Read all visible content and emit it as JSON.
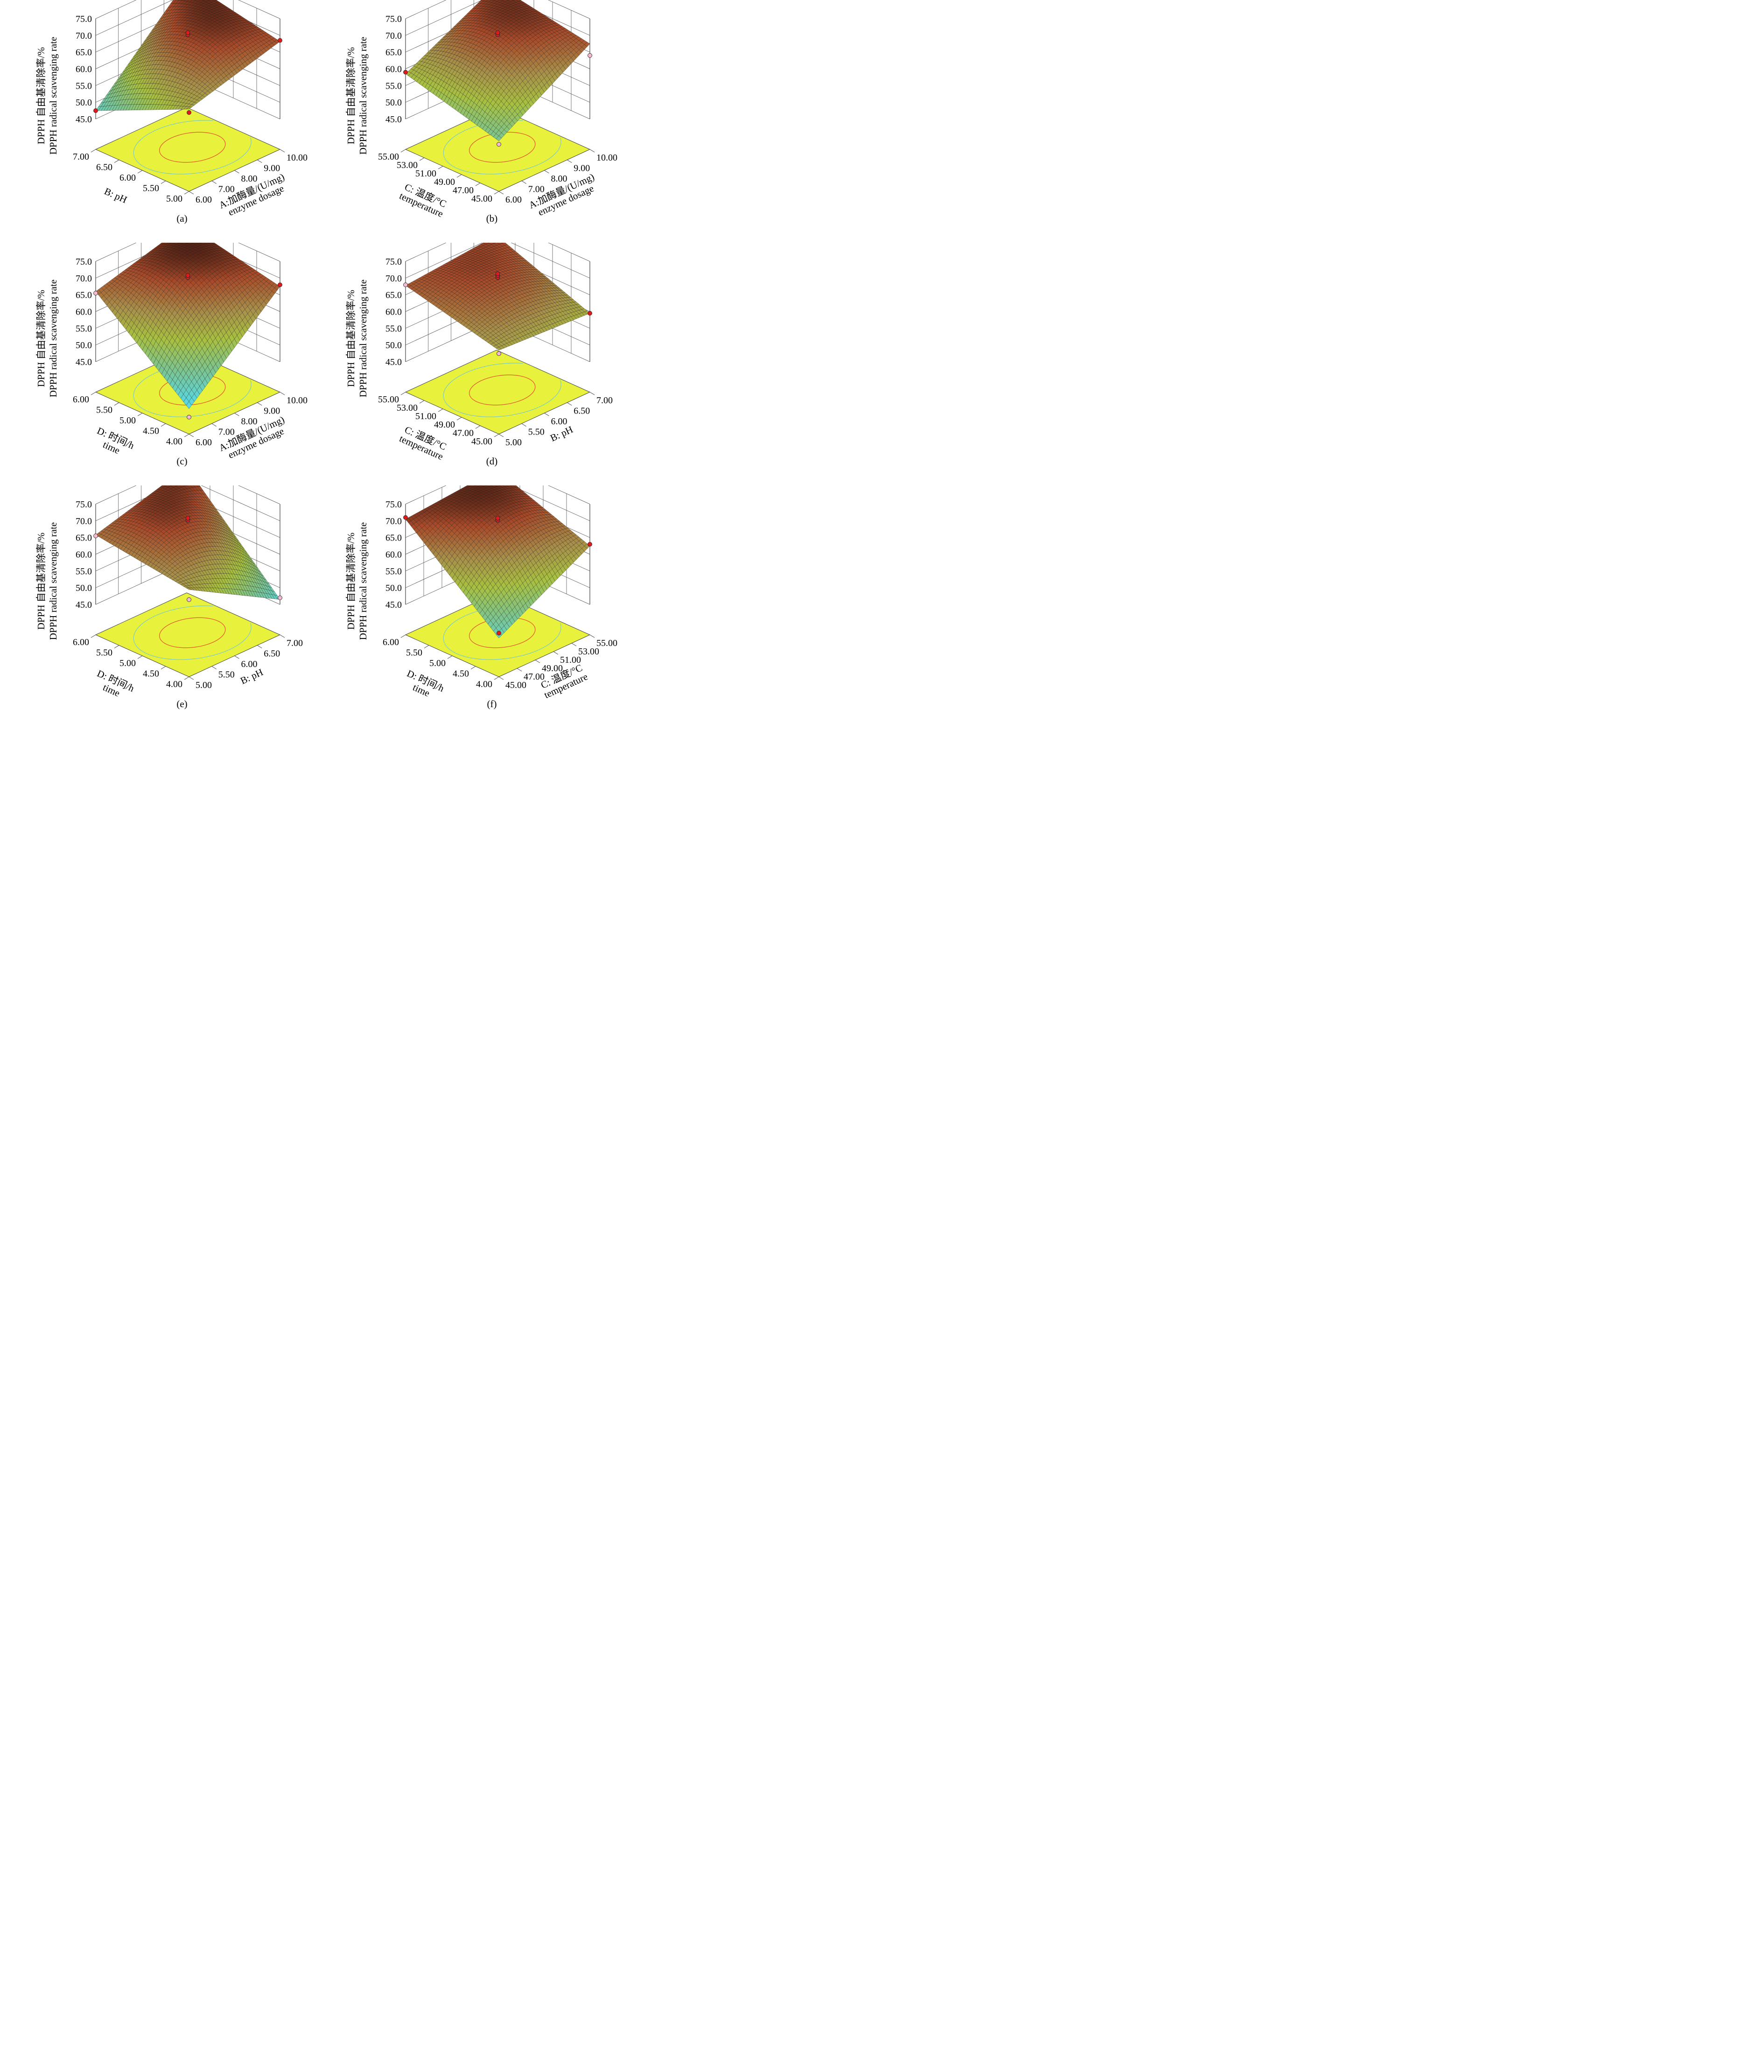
{
  "colors": {
    "floor": "#e8f23c",
    "contour_hi": "#e0502a",
    "contour_lo": "#7ac8c8",
    "point_above": "#e11919",
    "point_below": "#f4b8d0",
    "box": "#404040"
  },
  "chart_data": [
    {
      "id": "a",
      "type": "surface3d",
      "caption": "(a)",
      "zlabel": [
        "DPPH 自由基清除率/%",
        "DPPH radical scavenging rate"
      ],
      "zticks": [
        "45.0",
        "50.0",
        "55.0",
        "60.0",
        "65.0",
        "70.0",
        "75.0"
      ],
      "zlim": [
        45,
        75
      ],
      "right_axis": {
        "label": [
          "A:加酶量/(U/mg)",
          "enzyme dosage"
        ],
        "ticks": [
          "6.00",
          "7.00",
          "8.00",
          "9.00",
          "10.00"
        ],
        "range": [
          6,
          10
        ]
      },
      "left_axis": {
        "label": [
          "B: pH"
        ],
        "ticks": [
          "5.00",
          "5.50",
          "6.00",
          "6.50",
          "7.00"
        ],
        "range": [
          5,
          7
        ]
      },
      "corners": {
        "front": 60.5,
        "right": 68.2,
        "back": 73.8,
        "left": 47.5,
        "peak": 74.2
      },
      "points": [
        {
          "u": 0,
          "v": 0,
          "z": 59.5,
          "above": true
        },
        {
          "u": 0.5,
          "v": 0.5,
          "z": 70.2,
          "above": true
        },
        {
          "u": 0.5,
          "v": 0.5,
          "z": 70.8,
          "above": true
        },
        {
          "u": 1,
          "v": 0,
          "z": 68.5,
          "above": true
        },
        {
          "u": 0,
          "v": 1,
          "z": 47.5,
          "above": true
        },
        {
          "u": 1,
          "v": 1,
          "z": 73.5,
          "above": true
        }
      ]
    },
    {
      "id": "b",
      "type": "surface3d",
      "caption": "(b)",
      "zlabel": [
        "DPPH 自由基清除率/%",
        "DPPH radical scavenging rate"
      ],
      "zticks": [
        "45.0",
        "50.0",
        "55.0",
        "60.0",
        "65.0",
        "70.0",
        "75.0"
      ],
      "zlim": [
        45,
        75
      ],
      "right_axis": {
        "label": [
          "A:加酶量/(U/mg)",
          "enzyme dosage"
        ],
        "ticks": [
          "6.00",
          "7.00",
          "8.00",
          "9.00",
          "10.00"
        ],
        "range": [
          6,
          10
        ]
      },
      "left_axis": {
        "label": [
          "C: 温度/°C",
          "temperature"
        ],
        "ticks": [
          "45.00",
          "47.00",
          "49.00",
          "51.00",
          "53.00",
          "55.00"
        ],
        "range": [
          45,
          55
        ]
      },
      "corners": {
        "front": 51.0,
        "right": 67.5,
        "back": 72.5,
        "left": 58.5,
        "peak": 73.0
      },
      "points": [
        {
          "u": 0,
          "v": 0,
          "z": 50.0,
          "above": false
        },
        {
          "u": 0.5,
          "v": 0.5,
          "z": 70.2,
          "above": true
        },
        {
          "u": 0.5,
          "v": 0.5,
          "z": 70.8,
          "above": true
        },
        {
          "u": 1,
          "v": 0,
          "z": 64.0,
          "above": false
        },
        {
          "u": 0,
          "v": 1,
          "z": 59.0,
          "above": true
        }
      ]
    },
    {
      "id": "c",
      "type": "surface3d",
      "caption": "(c)",
      "zlabel": [
        "DPPH 自由基清除率/%",
        "DPPH radical scavenging rate"
      ],
      "zticks": [
        "45.0",
        "50.0",
        "55.0",
        "60.0",
        "65.0",
        "70.0",
        "75.0"
      ],
      "zlim": [
        45,
        75
      ],
      "right_axis": {
        "label": [
          "A:加酶量/(U/mg)",
          "enzyme dosage"
        ],
        "ticks": [
          "6.00",
          "7.00",
          "8.00",
          "9.00",
          "10.00"
        ],
        "range": [
          6,
          10
        ]
      },
      "left_axis": {
        "label": [
          "D: 时间/h",
          "time"
        ],
        "ticks": [
          "4.00",
          "4.50",
          "5.00",
          "5.50",
          "6.00"
        ],
        "range": [
          4,
          6
        ]
      },
      "corners": {
        "front": 43.5,
        "right": 67.5,
        "back": 73.5,
        "left": 66.0,
        "peak": 74.0
      },
      "points": [
        {
          "u": 0,
          "v": 0,
          "z": 41.0,
          "above": false
        },
        {
          "u": 0.5,
          "v": 0.5,
          "z": 70.2,
          "above": true
        },
        {
          "u": 0.5,
          "v": 0.5,
          "z": 70.8,
          "above": true
        },
        {
          "u": 1,
          "v": 0,
          "z": 68.0,
          "above": true
        },
        {
          "u": 0,
          "v": 1,
          "z": 65.5,
          "above": false
        },
        {
          "u": 1,
          "v": 1,
          "z": 75.5,
          "above": true
        }
      ]
    },
    {
      "id": "d",
      "type": "surface3d",
      "caption": "(d)",
      "zlabel": [
        "DPPH 自由基清除率/%",
        "DPPH radical scavenging rate"
      ],
      "zticks": [
        "45.0",
        "50.0",
        "55.0",
        "60.0",
        "65.0",
        "70.0",
        "75.0"
      ],
      "zlim": [
        45,
        75
      ],
      "right_axis": {
        "label": [
          "B: pH"
        ],
        "ticks": [
          "5.00",
          "5.50",
          "6.00",
          "6.50",
          "7.00"
        ],
        "range": [
          5,
          7
        ]
      },
      "left_axis": {
        "label": [
          "C: 温度/°C",
          "temperature"
        ],
        "ticks": [
          "45.00",
          "47.00",
          "49.00",
          "51.00",
          "53.00",
          "55.00"
        ],
        "range": [
          45,
          55
        ]
      },
      "corners": {
        "front": 61.0,
        "right": 59.5,
        "back": 70.2,
        "left": 67.8,
        "peak": 71.0
      },
      "points": [
        {
          "u": 0,
          "v": 0,
          "z": 60.0,
          "above": false
        },
        {
          "u": 0.5,
          "v": 0.5,
          "z": 70.2,
          "above": true
        },
        {
          "u": 0.5,
          "v": 0.5,
          "z": 70.8,
          "above": true
        },
        {
          "u": 0.5,
          "v": 0.5,
          "z": 71.3,
          "above": true
        },
        {
          "u": 1,
          "v": 0,
          "z": 59.5,
          "above": true
        },
        {
          "u": 0,
          "v": 1,
          "z": 68.0,
          "above": false
        }
      ]
    },
    {
      "id": "e",
      "type": "surface3d",
      "caption": "(e)",
      "zlabel": [
        "DPPH 自由基清除率/%",
        "DPPH radical scavenging rate"
      ],
      "zticks": [
        "45.0",
        "50.0",
        "55.0",
        "60.0",
        "65.0",
        "70.0",
        "75.0"
      ],
      "zlim": [
        45,
        75
      ],
      "right_axis": {
        "label": [
          "B: pH"
        ],
        "ticks": [
          "5.00",
          "5.50",
          "6.00",
          "6.50",
          "7.00"
        ],
        "range": [
          5,
          7
        ]
      },
      "left_axis": {
        "label": [
          "D: 时间/h",
          "time"
        ],
        "ticks": [
          "4.00",
          "4.50",
          "5.00",
          "5.50",
          "6.00"
        ],
        "range": [
          4,
          6
        ]
      },
      "corners": {
        "front": 62.0,
        "right": 46.5,
        "back": 73.5,
        "left": 65.8,
        "peak": 74.0
      },
      "points": [
        {
          "u": 0,
          "v": 0,
          "z": 59.0,
          "above": false
        },
        {
          "u": 0.5,
          "v": 0.5,
          "z": 70.2,
          "above": true
        },
        {
          "u": 0.5,
          "v": 0.5,
          "z": 70.8,
          "above": true
        },
        {
          "u": 1,
          "v": 0,
          "z": 47.0,
          "above": false
        },
        {
          "u": 0,
          "v": 1,
          "z": 65.5,
          "above": false
        },
        {
          "u": 1,
          "v": 1,
          "z": 74.0,
          "above": false
        }
      ]
    },
    {
      "id": "f",
      "type": "surface3d",
      "caption": "(f)",
      "zlabel": [
        "DPPH 自由基清除率/%",
        "DPPH radical scavenging rate"
      ],
      "zticks": [
        "45.0",
        "50.0",
        "55.0",
        "60.0",
        "65.0",
        "70.0",
        "75.0"
      ],
      "zlim": [
        45,
        75
      ],
      "right_axis": {
        "label": [
          "C: 温度/°C",
          "temperature"
        ],
        "ticks": [
          "45.00",
          "47.00",
          "49.00",
          "51.00",
          "53.00",
          "55.00"
        ],
        "range": [
          45,
          55
        ]
      },
      "left_axis": {
        "label": [
          "D: 时间/h",
          "time"
        ],
        "ticks": [
          "4.00",
          "4.50",
          "5.00",
          "5.50",
          "6.00"
        ],
        "range": [
          4,
          6
        ]
      },
      "corners": {
        "front": 47.5,
        "right": 62.5,
        "back": 72.8,
        "left": 70.5,
        "peak": 73.0
      },
      "points": [
        {
          "u": 0,
          "v": 0,
          "z": 49.0,
          "above": true
        },
        {
          "u": 0.5,
          "v": 0.5,
          "z": 70.2,
          "above": true
        },
        {
          "u": 0.5,
          "v": 0.5,
          "z": 70.8,
          "above": true
        },
        {
          "u": 1,
          "v": 0,
          "z": 63.0,
          "above": true
        },
        {
          "u": 0,
          "v": 1,
          "z": 71.0,
          "above": true
        }
      ]
    }
  ]
}
